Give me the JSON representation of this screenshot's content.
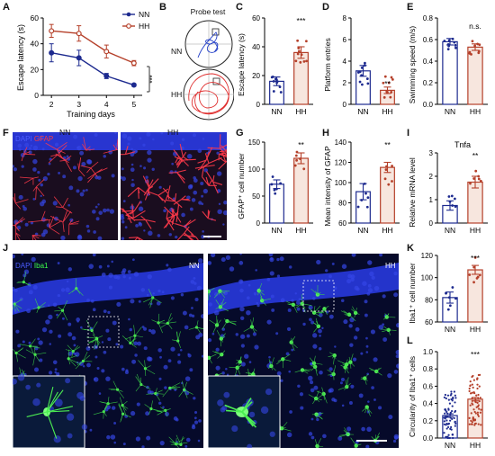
{
  "panels": {
    "A": "A",
    "B": "B",
    "C": "C",
    "D": "D",
    "E": "E",
    "F": "F",
    "G": "G",
    "H": "H",
    "I": "I",
    "J": "J",
    "K": "K",
    "L": "L"
  },
  "colors": {
    "NN": "#1d2a8f",
    "HH": "#b5402a",
    "hh_fill": "#f7e6de",
    "dapi": "#4c5cff",
    "gfap": "#ff3b3b",
    "iba1": "#3dff4a"
  },
  "groups": {
    "nn": "NN",
    "hh": "HH"
  },
  "panelA": {
    "ylabel": "Escape latency (s)",
    "xlabel": "Training days",
    "legend": [
      "NN",
      "HH"
    ],
    "sig": "***",
    "chart_data": {
      "type": "line",
      "x": [
        2,
        3,
        4,
        5
      ],
      "ylim": [
        0,
        60
      ],
      "yticks": [
        0,
        20,
        40,
        60
      ],
      "series": [
        {
          "name": "NN",
          "values": [
            33,
            29,
            15,
            8
          ],
          "err": [
            7,
            6,
            2,
            1
          ]
        },
        {
          "name": "HH",
          "values": [
            50,
            48,
            34,
            25
          ],
          "err": [
            5,
            6,
            5,
            2
          ]
        }
      ]
    }
  },
  "panelB": {
    "title": "Probe test",
    "nn": "NN",
    "hh": "HH"
  },
  "panelC": {
    "ylabel": "Escape latency (s)",
    "sig": "***",
    "chart_data": {
      "type": "bar",
      "categories": [
        "NN",
        "HH"
      ],
      "values": [
        16,
        36
      ],
      "err": [
        3,
        4
      ],
      "ylim": [
        0,
        60
      ],
      "yticks": [
        0,
        20,
        40,
        60
      ]
    }
  },
  "panelD": {
    "ylabel": "Platform entries",
    "sig": "**",
    "chart_data": {
      "type": "bar",
      "categories": [
        "NN",
        "HH"
      ],
      "values": [
        3.1,
        1.3
      ],
      "err": [
        0.5,
        0.3
      ],
      "ylim": [
        0,
        8
      ],
      "yticks": [
        0,
        2,
        4,
        6,
        8
      ]
    }
  },
  "panelE": {
    "ylabel": "Swimming speed (m/s)",
    "sig": "n.s.",
    "chart_data": {
      "type": "bar",
      "categories": [
        "NN",
        "HH"
      ],
      "values": [
        0.58,
        0.53
      ],
      "err": [
        0.03,
        0.03
      ],
      "ylim": [
        0,
        0.8
      ],
      "yticks": [
        "0.0",
        "0.2",
        "0.4",
        "0.6",
        "0.8"
      ]
    }
  },
  "panelF": {
    "label_dapi": "DAPI",
    "label_gfap": "GFAP",
    "nn": "NN",
    "hh": "HH"
  },
  "panelG": {
    "ylabel": "GFAP⁺ cell number",
    "sig": "**",
    "chart_data": {
      "type": "bar",
      "categories": [
        "NN",
        "HH"
      ],
      "values": [
        72,
        120
      ],
      "err": [
        8,
        10
      ],
      "ylim": [
        0,
        150
      ],
      "yticks": [
        0,
        50,
        100,
        150
      ]
    }
  },
  "panelH": {
    "ylabel": "Mean intensity of GFAP",
    "sig": "**",
    "chart_data": {
      "type": "bar",
      "categories": [
        "NN",
        "HH"
      ],
      "values": [
        91,
        115
      ],
      "err": [
        8,
        5
      ],
      "ylim": [
        60,
        140
      ],
      "yticks": [
        60,
        80,
        100,
        120,
        140
      ]
    }
  },
  "panelI": {
    "title": "Tnfa",
    "ylabel": "Relative mRNA level",
    "sig": "**",
    "chart_data": {
      "type": "bar",
      "categories": [
        "NN",
        "HH"
      ],
      "values": [
        0.75,
        1.75
      ],
      "err": [
        0.2,
        0.25
      ],
      "ylim": [
        0,
        3
      ],
      "yticks": [
        0,
        1,
        2,
        3
      ]
    }
  },
  "panelJ": {
    "label_dapi": "DAPI",
    "label_iba": "Iba1",
    "nn": "NN",
    "hh": "HH"
  },
  "panelK": {
    "ylabel": "Iba1⁺ cell number",
    "sig": "***",
    "chart_data": {
      "type": "bar",
      "categories": [
        "NN",
        "HH"
      ],
      "values": [
        82,
        107
      ],
      "err": [
        5,
        4
      ],
      "ylim": [
        60,
        120
      ],
      "yticks": [
        60,
        80,
        100,
        120
      ]
    }
  },
  "panelL": {
    "ylabel": "Circularity of Iba1⁺ cells",
    "sig": "***",
    "chart_data": {
      "type": "bar",
      "categories": [
        "NN",
        "HH"
      ],
      "values": [
        0.26,
        0.45
      ],
      "err": [
        0.02,
        0.02
      ],
      "ylim": [
        0,
        1
      ],
      "yticks": [
        "0.0",
        "0.2",
        "0.4",
        "0.6",
        "0.8",
        "1.0"
      ]
    }
  }
}
